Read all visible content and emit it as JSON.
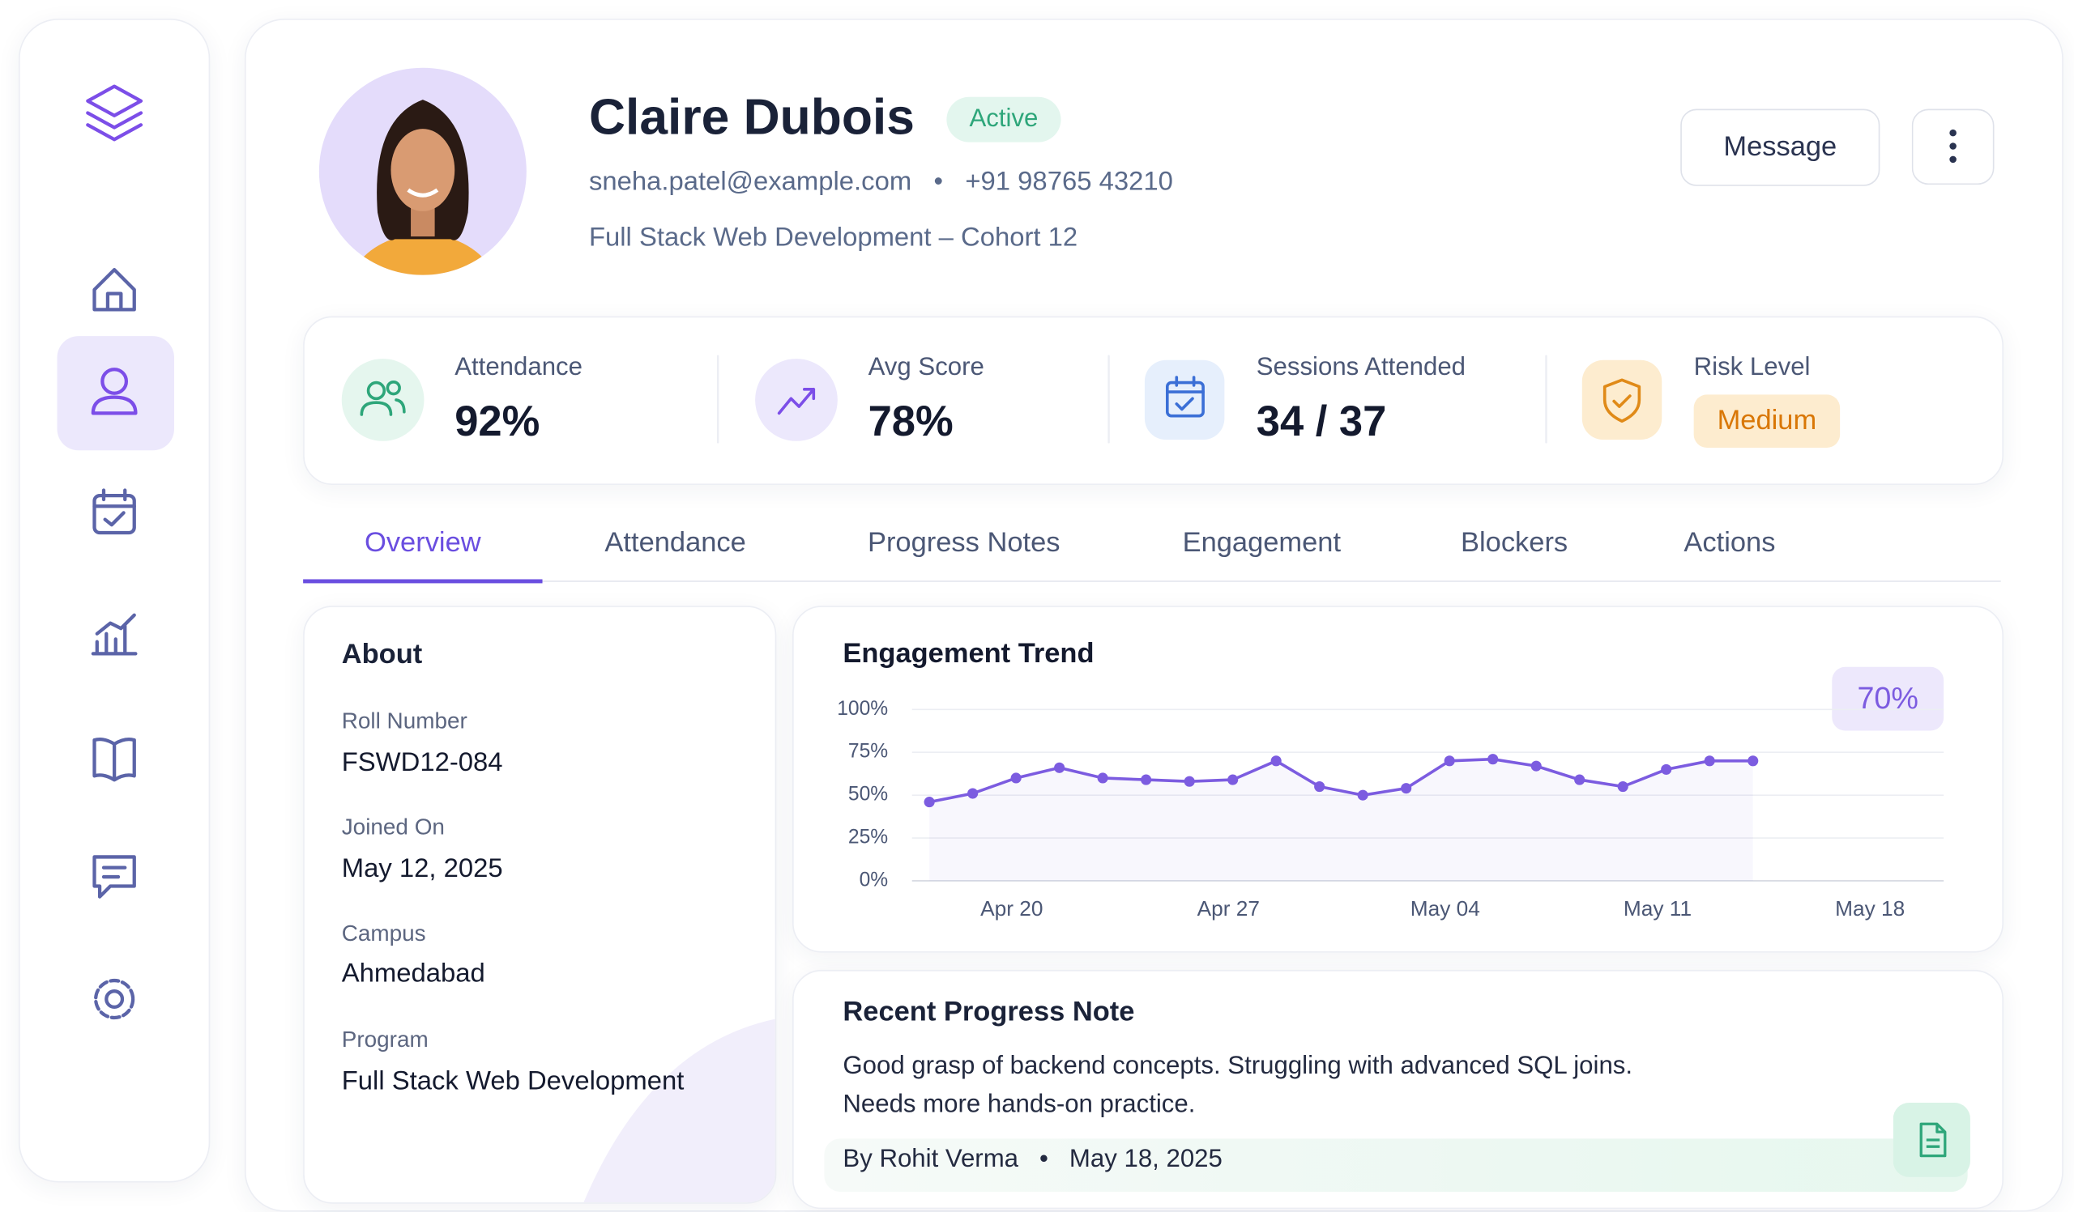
{
  "profile": {
    "name": "Claire Dubois",
    "status": "Active",
    "email": "sneha.patel@example.com",
    "separator": "•",
    "phone": "+91 98765 43210",
    "program": "Full Stack Web Development – Cohort 12"
  },
  "buttons": {
    "message": "Message"
  },
  "stats": [
    {
      "label": "Attendance",
      "value": "92%"
    },
    {
      "label": "Avg Score",
      "value": "78%"
    },
    {
      "label": "Sessions Attended",
      "value": "34 / 37"
    },
    {
      "label": "Risk Level",
      "value": "Medium"
    }
  ],
  "tabs": [
    "Overview",
    "Attendance",
    "Progress Notes",
    "Engagement",
    "Blockers",
    "Actions"
  ],
  "about": {
    "title": "About",
    "fields": [
      {
        "label": "Roll Number",
        "value": "FSWD12-084"
      },
      {
        "label": "Joined On",
        "value": "May 12, 2025"
      },
      {
        "label": "Campus",
        "value": "Ahmedabad"
      },
      {
        "label": "Program",
        "value": "Full Stack Web Development"
      }
    ]
  },
  "chart_data": {
    "type": "line",
    "title": "Engagement Trend",
    "badge": "70%",
    "x": [
      0,
      1,
      2,
      3,
      4,
      5,
      6,
      7,
      8,
      9,
      10,
      11,
      12,
      13,
      14,
      15,
      16,
      17,
      18,
      19
    ],
    "series": [
      {
        "color": "#7c5ce0",
        "values": [
          46,
          51,
          60,
          66,
          60,
          59,
          58,
          59,
          70,
          55,
          50,
          54,
          70,
          71,
          67,
          59,
          55,
          65,
          70,
          70
        ]
      }
    ],
    "xlim": [
      -0.4,
      23.4
    ],
    "xticks": [
      {
        "value": 1.9,
        "label": "Apr 20"
      },
      {
        "value": 6.9,
        "label": "Apr 27"
      },
      {
        "value": 11.9,
        "label": "May 04"
      },
      {
        "value": 16.8,
        "label": "May 11"
      },
      {
        "value": 21.7,
        "label": "May 18"
      }
    ],
    "ylim": [
      0,
      100
    ],
    "yticks": [
      {
        "value": 0,
        "label": "0%"
      },
      {
        "value": 25,
        "label": "25%"
      },
      {
        "value": 50,
        "label": "50%"
      },
      {
        "value": 75,
        "label": "75%"
      },
      {
        "value": 100,
        "label": "100%"
      }
    ],
    "grid": true
  },
  "note": {
    "title": "Recent Progress Note",
    "lines": [
      "Good grasp of backend concepts. Struggling with advanced SQL joins.",
      "Needs more hands-on practice."
    ],
    "author": "By Rohit Verma",
    "separator": "•",
    "date": "May 18, 2025"
  }
}
